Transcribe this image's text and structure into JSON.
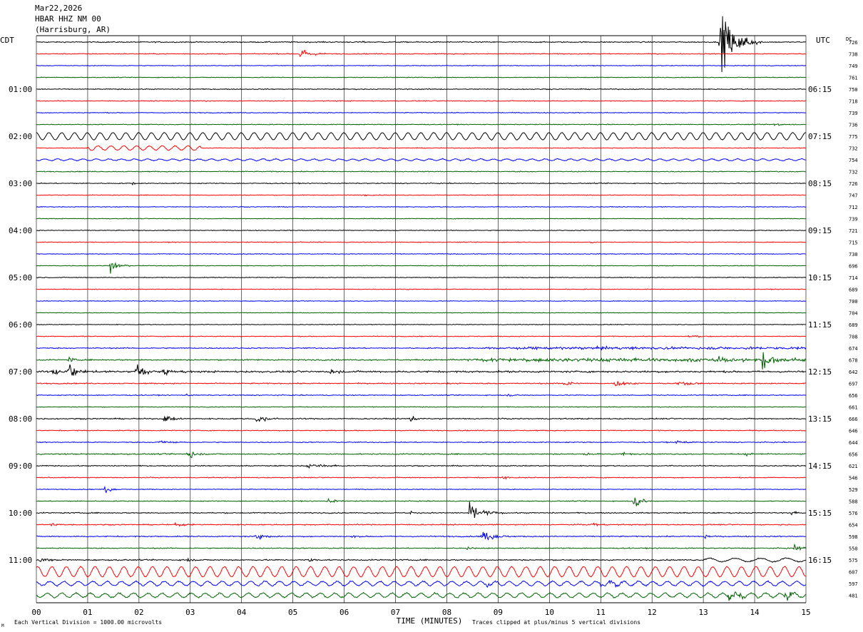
{
  "header": {
    "date": "Mar22,2026",
    "station": "HBAR HHZ NM 00",
    "location": "(Harrisburg, AR)"
  },
  "labels": {
    "left_tz": "CDT",
    "right_tz": "UTC",
    "dc": "DC",
    "xlabel": "TIME (MINUTES)",
    "footer_left": "Each Vertical Division = 1000.00 microvolts",
    "footer_right": "Traces clipped at plus/minus 5 vertical divisions",
    "corner_mark": "M"
  },
  "colors": {
    "trace_cycle": [
      "#000000",
      "#ff0000",
      "#0000ff",
      "#006400"
    ],
    "grid": "#000000",
    "background": "#ffffff"
  },
  "chart_data": {
    "type": "line",
    "xlim": [
      0,
      15
    ],
    "x_ticks": [
      "00",
      "01",
      "02",
      "03",
      "04",
      "05",
      "06",
      "07",
      "08",
      "09",
      "10",
      "11",
      "12",
      "13",
      "14",
      "15"
    ],
    "left_hour_labels": [
      "01:00",
      "02:00",
      "03:00",
      "04:00",
      "05:00",
      "06:00",
      "07:00",
      "08:00",
      "09:00",
      "10:00",
      "11:00"
    ],
    "right_hour_labels": [
      "06:15",
      "07:15",
      "08:15",
      "09:15",
      "10:15",
      "11:15",
      "12:15",
      "13:15",
      "14:15",
      "15:15",
      "16:15"
    ],
    "dc_values": [
      "726",
      "738",
      "749",
      "761",
      "750",
      "718",
      "739",
      "736",
      "775",
      "732",
      "754",
      "732",
      "726",
      "747",
      "712",
      "739",
      "721",
      "715",
      "730",
      "696",
      "714",
      "689",
      "700",
      "704",
      "689",
      "708",
      "674",
      "678",
      "642",
      "697",
      "656",
      "661",
      "666",
      "646",
      "644",
      "656",
      "621",
      "546",
      "529",
      "588",
      "576",
      "654",
      "598",
      "550",
      "575",
      "607",
      "597",
      "481"
    ],
    "traces": [
      {
        "noise": 1.2,
        "events": [
          {
            "t": 13.35,
            "amp": 40,
            "dur": 0.8
          },
          {
            "t": 6.35,
            "amp": 4,
            "dur": 0.1
          }
        ]
      },
      {
        "noise": 1.0,
        "events": [
          {
            "t": 5.15,
            "amp": 8,
            "dur": 0.6
          }
        ]
      },
      {
        "noise": 0.8,
        "events": []
      },
      {
        "noise": 0.8,
        "events": []
      },
      {
        "noise": 1.0,
        "events": []
      },
      {
        "noise": 0.9,
        "events": [
          {
            "t": 3.3,
            "amp": 2,
            "dur": 0.2
          }
        ]
      },
      {
        "noise": 0.9,
        "events": []
      },
      {
        "noise": 0.9,
        "events": [
          {
            "t": 14.4,
            "amp": 3,
            "dur": 0.5
          }
        ]
      },
      {
        "noise": 0.6,
        "sine": {
          "amp": 5,
          "period": 0.25
        },
        "events": []
      },
      {
        "noise": 0.8,
        "sine": {
          "amp": 3,
          "period": 0.25,
          "t0": 1.0,
          "t1": 3.2
        },
        "events": []
      },
      {
        "noise": 0.9,
        "sine": {
          "amp": 1.2,
          "period": 0.25
        },
        "events": []
      },
      {
        "noise": 1.0,
        "events": []
      },
      {
        "noise": 1.0,
        "events": [
          {
            "t": 1.9,
            "amp": 3,
            "dur": 0.1
          }
        ]
      },
      {
        "noise": 0.8,
        "events": [
          {
            "t": 6.4,
            "amp": 2,
            "dur": 0.1
          }
        ]
      },
      {
        "noise": 0.8,
        "events": []
      },
      {
        "noise": 0.8,
        "events": []
      },
      {
        "noise": 0.9,
        "events": []
      },
      {
        "noise": 0.8,
        "events": [
          {
            "t": 10.8,
            "amp": 2,
            "dur": 0.2
          }
        ]
      },
      {
        "noise": 0.9,
        "events": []
      },
      {
        "noise": 0.8,
        "events": [
          {
            "t": 1.45,
            "amp": 10,
            "dur": 0.4
          }
        ]
      },
      {
        "noise": 0.9,
        "events": []
      },
      {
        "noise": 0.8,
        "events": [
          {
            "t": 7.2,
            "amp": 2,
            "dur": 0.1
          }
        ]
      },
      {
        "noise": 0.7,
        "events": []
      },
      {
        "noise": 0.7,
        "events": []
      },
      {
        "noise": 0.8,
        "events": []
      },
      {
        "noise": 0.9,
        "events": [
          {
            "t": 12.7,
            "amp": 3,
            "dur": 0.6
          }
        ]
      },
      {
        "noise": 1.2,
        "ramp": {
          "t0": 8.0,
          "amp": 2.5
        },
        "events": []
      },
      {
        "noise": 1.4,
        "ramp": {
          "t0": 7.5,
          "amp": 3.5
        },
        "events": [
          {
            "t": 0.65,
            "amp": 6,
            "dur": 0.2
          },
          {
            "t": 14.15,
            "amp": 16,
            "dur": 0.5
          },
          {
            "t": 13.3,
            "amp": 5,
            "dur": 0.4
          }
        ]
      },
      {
        "noise": 2.0,
        "events": [
          {
            "t": 0.3,
            "amp": 6,
            "dur": 1.0
          },
          {
            "t": 0.65,
            "amp": 14,
            "dur": 0.3
          },
          {
            "t": 1.95,
            "amp": 14,
            "dur": 0.5
          },
          {
            "t": 2.5,
            "amp": 5,
            "dur": 0.6
          },
          {
            "t": 5.75,
            "amp": 6,
            "dur": 0.3
          }
        ]
      },
      {
        "noise": 1.2,
        "events": [
          {
            "t": 8.0,
            "amp": 3,
            "dur": 0.5
          },
          {
            "t": 10.3,
            "amp": 6,
            "dur": 0.4
          },
          {
            "t": 11.3,
            "amp": 6,
            "dur": 0.5
          },
          {
            "t": 12.5,
            "amp": 3,
            "dur": 1.2
          }
        ]
      },
      {
        "noise": 1.0,
        "events": [
          {
            "t": 9.2,
            "amp": 2,
            "dur": 0.4
          },
          {
            "t": 2.95,
            "amp": 3,
            "dur": 0.1
          }
        ]
      },
      {
        "noise": 0.9,
        "events": []
      },
      {
        "noise": 1.3,
        "events": [
          {
            "t": 2.5,
            "amp": 6,
            "dur": 0.6
          },
          {
            "t": 4.3,
            "amp": 7,
            "dur": 0.5
          },
          {
            "t": 7.3,
            "amp": 5,
            "dur": 0.3
          }
        ]
      },
      {
        "noise": 1.0,
        "events": []
      },
      {
        "noise": 1.1,
        "events": [
          {
            "t": 2.4,
            "amp": 3,
            "dur": 0.5
          },
          {
            "t": 12.5,
            "amp": 3,
            "dur": 0.6
          }
        ]
      },
      {
        "noise": 1.3,
        "events": [
          {
            "t": 2.95,
            "amp": 8,
            "dur": 0.4
          },
          {
            "t": 10.7,
            "amp": 3,
            "dur": 0.5
          },
          {
            "t": 11.4,
            "amp": 3,
            "dur": 0.4
          },
          {
            "t": 13.8,
            "amp": 3,
            "dur": 0.5
          }
        ]
      },
      {
        "noise": 1.1,
        "events": [
          {
            "t": 5.3,
            "amp": 3,
            "dur": 1.2
          }
        ]
      },
      {
        "noise": 1.0,
        "events": [
          {
            "t": 9.1,
            "amp": 3,
            "dur": 0.4
          }
        ]
      },
      {
        "noise": 0.9,
        "events": [
          {
            "t": 1.35,
            "amp": 7,
            "dur": 0.3
          }
        ]
      },
      {
        "noise": 1.0,
        "events": [
          {
            "t": 5.7,
            "amp": 4,
            "dur": 0.4
          },
          {
            "t": 11.65,
            "amp": 10,
            "dur": 0.5
          }
        ]
      },
      {
        "noise": 1.2,
        "events": [
          {
            "t": 7.3,
            "amp": 6,
            "dur": 0.2
          },
          {
            "t": 8.45,
            "amp": 14,
            "dur": 0.7
          },
          {
            "t": 14.7,
            "amp": 3,
            "dur": 0.4
          }
        ]
      },
      {
        "noise": 1.2,
        "events": [
          {
            "t": 0.3,
            "amp": 3,
            "dur": 0.4
          },
          {
            "t": 10.85,
            "amp": 5,
            "dur": 0.3
          },
          {
            "t": 2.7,
            "amp": 3,
            "dur": 0.6
          }
        ]
      },
      {
        "noise": 1.3,
        "events": [
          {
            "t": 4.3,
            "amp": 5,
            "dur": 0.6
          },
          {
            "t": 8.7,
            "amp": 10,
            "dur": 0.6
          },
          {
            "t": 13.05,
            "amp": 6,
            "dur": 0.2
          },
          {
            "t": 6.15,
            "amp": 4,
            "dur": 0.2
          }
        ]
      },
      {
        "noise": 1.1,
        "events": [
          {
            "t": 8.4,
            "amp": 4,
            "dur": 0.2
          },
          {
            "t": 14.8,
            "amp": 6,
            "dur": 0.4
          }
        ]
      },
      {
        "noise": 1.4,
        "sine": {
          "amp": 2.5,
          "period": 0.5,
          "t0": 13.0,
          "t1": 15.0
        },
        "events": [
          {
            "t": 0.1,
            "amp": 7,
            "dur": 0.3
          },
          {
            "t": 2.9,
            "amp": 4,
            "dur": 0.3
          },
          {
            "t": 5.3,
            "amp": 4,
            "dur": 0.3
          }
        ]
      },
      {
        "noise": 1.0,
        "sine": {
          "amp": 7,
          "period": 0.28
        },
        "events": []
      },
      {
        "noise": 1.4,
        "sine": {
          "amp": 3,
          "period": 0.28
        },
        "events": [
          {
            "t": 11.0,
            "amp": 4,
            "dur": 1.5
          },
          {
            "t": 8.8,
            "amp": 4,
            "dur": 0.5
          }
        ]
      },
      {
        "noise": 1.5,
        "sine": {
          "amp": 3,
          "period": 0.28
        },
        "events": [
          {
            "t": 13.5,
            "amp": 6,
            "dur": 1.0
          },
          {
            "t": 14.6,
            "amp": 8,
            "dur": 0.5
          }
        ]
      }
    ]
  }
}
